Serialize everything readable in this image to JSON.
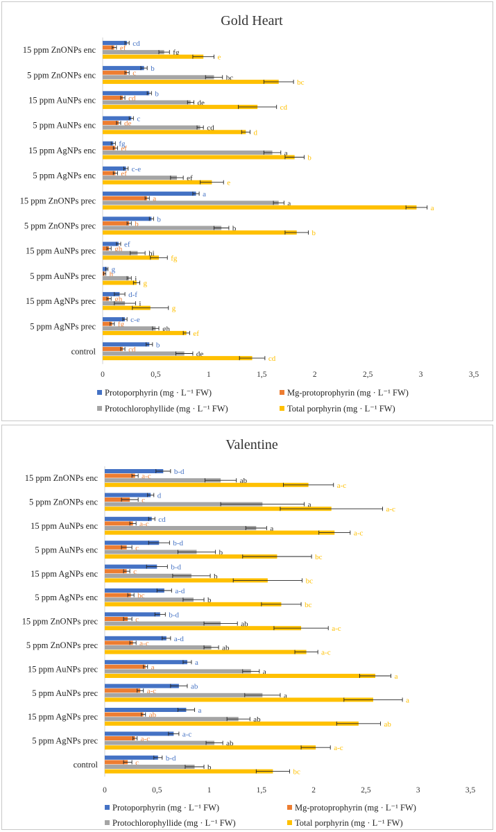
{
  "chart_data": [
    {
      "type": "bar",
      "orientation": "horizontal",
      "title": "Gold Heart",
      "categories": [
        "15 ppm ZnONPs enc",
        "5 ppm ZnONPs enc",
        "15 ppm AuNPs enc",
        "5 ppm AuNPs enc",
        "15 ppm AgNPs enc",
        "5 ppm AgNPs enc",
        "15 ppm ZnONPs prec",
        "5 ppm ZnONPs prec",
        "15 ppm AuNPs prec",
        "5 ppm AuNPs prec",
        "15 ppm AgNPs prec",
        "5 ppm AgNPs prec",
        "control"
      ],
      "xlim": [
        0,
        3.5
      ],
      "ticks": [
        "0",
        "0,5",
        "1",
        "1,5",
        "2",
        "2,5",
        "3",
        "3,5"
      ],
      "legend": [
        "Protoporphyrin (mg · L⁻¹ FW)",
        "Mg-protoprophyrin (mg · L⁻¹ FW)",
        "Protochlorophyllide (mg · L⁻¹ FW)",
        "Total porphyrin (mg · L⁻¹ FW)"
      ],
      "colors": [
        "#4472c4",
        "#ed7d31",
        "#a5a5a5",
        "#ffc000"
      ],
      "series": [
        {
          "name": "Protoporphyrin",
          "values": [
            0.23,
            0.39,
            0.44,
            0.27,
            0.1,
            0.22,
            0.88,
            0.46,
            0.15,
            0.04,
            0.16,
            0.21,
            0.44
          ],
          "errors": [
            0.02,
            0.03,
            0.02,
            0.02,
            0.02,
            0.02,
            0.03,
            0.02,
            0.02,
            0.01,
            0.05,
            0.02,
            0.03
          ],
          "labels": [
            "cd",
            "b",
            "b",
            "c",
            "fg",
            "c-e",
            "a",
            "b",
            "ef",
            "g",
            "d-f",
            "c-e",
            "b"
          ]
        },
        {
          "name": "Mg-protoprophyrin",
          "values": [
            0.11,
            0.23,
            0.19,
            0.15,
            0.12,
            0.12,
            0.42,
            0.25,
            0.06,
            0.02,
            0.06,
            0.09,
            0.19
          ],
          "errors": [
            0.02,
            0.02,
            0.02,
            0.02,
            0.02,
            0.02,
            0.02,
            0.02,
            0.02,
            0.01,
            0.02,
            0.02,
            0.02
          ],
          "labels": [
            "ef",
            "c",
            "cd",
            "de",
            "ef",
            "ef",
            "a",
            "b",
            "gh",
            "h",
            "gh",
            "fg",
            "cd"
          ]
        },
        {
          "name": "Protochlorophyllide",
          "values": [
            0.58,
            1.05,
            0.83,
            0.92,
            1.6,
            0.7,
            1.66,
            1.12,
            0.33,
            0.25,
            0.21,
            0.5,
            0.77
          ],
          "errors": [
            0.05,
            0.08,
            0.03,
            0.03,
            0.08,
            0.06,
            0.05,
            0.07,
            0.07,
            0.02,
            0.1,
            0.03,
            0.08
          ],
          "labels": [
            "fg",
            "bc",
            "de",
            "cd",
            "a",
            "ef",
            "a",
            "b",
            "hi",
            "i",
            "i",
            "gh",
            "de"
          ]
        },
        {
          "name": "Total porphyrin",
          "values": [
            0.95,
            1.66,
            1.46,
            1.35,
            1.81,
            1.03,
            2.96,
            1.83,
            0.53,
            0.32,
            0.45,
            0.79,
            1.41
          ],
          "errors": [
            0.1,
            0.14,
            0.18,
            0.04,
            0.09,
            0.11,
            0.1,
            0.11,
            0.08,
            0.03,
            0.17,
            0.03,
            0.12
          ],
          "labels": [
            "e",
            "bc",
            "cd",
            "d",
            "b",
            "e",
            "a",
            "b",
            "fg",
            "g",
            "g",
            "ef",
            "cd"
          ]
        }
      ]
    },
    {
      "type": "bar",
      "orientation": "horizontal",
      "title": "Valentine",
      "categories": [
        "15 ppm ZnONPs enc",
        "5 ppm ZnONPs enc",
        "15 ppm AuNPs enc",
        "5 ppm AuNPs enc",
        "15 ppm AgNPs enc",
        "5 ppm AgNPs enc",
        "15 ppm ZnONPs prec",
        "5 ppm ZnONPs prec",
        "15 ppm AuNPs prec",
        "5 ppm AuNPs prec",
        "15 ppm AgNPs prec",
        "5 ppm AgNPs prec",
        "control"
      ],
      "xlim": [
        0,
        3.5
      ],
      "ticks": [
        "0",
        "0,5",
        "1",
        "1,5",
        "2",
        "2,5",
        "3",
        "3,5"
      ],
      "legend": [
        "Protoporphyrin (mg · L⁻¹ FW)",
        "Mg-protoprophyrin (mg · L⁻¹ FW)",
        "Protochlorophyllide (mg · L⁻¹ FW)",
        "Total porphyrin (mg · L⁻¹ FW)"
      ],
      "colors": [
        "#4472c4",
        "#ed7d31",
        "#a5a5a5",
        "#ffc000"
      ],
      "series": [
        {
          "name": "Protoporphyrin",
          "values": [
            0.56,
            0.44,
            0.45,
            0.52,
            0.5,
            0.57,
            0.53,
            0.59,
            0.79,
            0.71,
            0.78,
            0.66,
            0.51
          ],
          "errors": [
            0.07,
            0.03,
            0.03,
            0.1,
            0.1,
            0.07,
            0.05,
            0.04,
            0.04,
            0.08,
            0.08,
            0.05,
            0.04
          ],
          "labels": [
            "b-d",
            "d",
            "cd",
            "b-d",
            "b-d",
            "a-d",
            "b-d",
            "a-d",
            "a",
            "ab",
            "a",
            "a-c",
            "b-d"
          ]
        },
        {
          "name": "Mg-protoprophyrin",
          "values": [
            0.29,
            0.24,
            0.27,
            0.21,
            0.21,
            0.25,
            0.22,
            0.27,
            0.39,
            0.34,
            0.37,
            0.29,
            0.22
          ],
          "errors": [
            0.03,
            0.08,
            0.03,
            0.05,
            0.03,
            0.03,
            0.04,
            0.03,
            0.02,
            0.03,
            0.02,
            0.02,
            0.04
          ],
          "labels": [
            "a-c",
            "c",
            "a-c",
            "c",
            "c",
            "bc",
            "c",
            "a-c",
            "a",
            "a-c",
            "ab",
            "a-c",
            "c"
          ]
        },
        {
          "name": "Protochlorophyllide",
          "values": [
            1.11,
            1.51,
            1.45,
            0.88,
            0.83,
            0.85,
            1.11,
            1.02,
            1.4,
            1.51,
            1.28,
            1.05,
            0.86
          ],
          "errors": [
            0.15,
            0.4,
            0.1,
            0.18,
            0.18,
            0.1,
            0.16,
            0.07,
            0.08,
            0.17,
            0.11,
            0.08,
            0.09
          ],
          "labels": [
            "ab",
            "a",
            "a",
            "b",
            "b",
            "b",
            "ab",
            "ab",
            "a",
            "a",
            "ab",
            "ab",
            "b"
          ]
        },
        {
          "name": "Total porphyrin",
          "values": [
            1.95,
            2.17,
            2.2,
            1.65,
            1.56,
            1.69,
            1.88,
            1.93,
            2.59,
            2.57,
            2.43,
            2.02,
            1.61
          ],
          "errors": [
            0.24,
            0.49,
            0.15,
            0.33,
            0.33,
            0.19,
            0.26,
            0.11,
            0.15,
            0.28,
            0.21,
            0.14,
            0.16
          ],
          "labels": [
            "a-c",
            "a-c",
            "a-c",
            "bc",
            "bc",
            "bc",
            "a-c",
            "a-c",
            "a",
            "a",
            "ab",
            "a-c",
            "bc"
          ]
        }
      ]
    }
  ]
}
